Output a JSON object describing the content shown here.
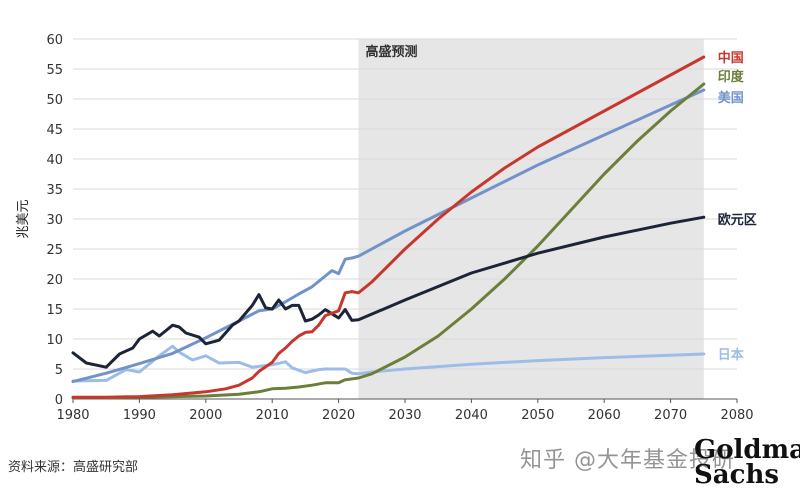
{
  "chart_data": {
    "type": "line",
    "title": "",
    "xlabel": "",
    "ylabel": "兆美元",
    "xlim": [
      1980,
      2080
    ],
    "ylim": [
      0,
      60
    ],
    "xticks": [
      "1980",
      "1990",
      "2000",
      "2010",
      "2020",
      "2030",
      "2040",
      "2050",
      "2060",
      "2070",
      "2080"
    ],
    "yticks": [
      "0",
      "5",
      "10",
      "15",
      "20",
      "25",
      "30",
      "35",
      "40",
      "45",
      "50",
      "55",
      "60"
    ],
    "forecast": {
      "label": "高盛预测",
      "start": 2023,
      "end": 2075
    },
    "series": [
      {
        "name": "中国",
        "color": "#c8372d",
        "points": [
          [
            1980,
            0.3
          ],
          [
            1985,
            0.3
          ],
          [
            1990,
            0.4
          ],
          [
            1995,
            0.7
          ],
          [
            2000,
            1.2
          ],
          [
            2003,
            1.7
          ],
          [
            2005,
            2.3
          ],
          [
            2007,
            3.5
          ],
          [
            2008,
            4.6
          ],
          [
            2010,
            6.1
          ],
          [
            2011,
            7.6
          ],
          [
            2012,
            8.5
          ],
          [
            2013,
            9.6
          ],
          [
            2014,
            10.5
          ],
          [
            2015,
            11.1
          ],
          [
            2016,
            11.2
          ],
          [
            2017,
            12.3
          ],
          [
            2018,
            13.9
          ],
          [
            2019,
            14.3
          ],
          [
            2020,
            14.7
          ],
          [
            2021,
            17.7
          ],
          [
            2022,
            17.9
          ],
          [
            2023,
            17.7
          ],
          [
            2025,
            19.5
          ],
          [
            2030,
            25
          ],
          [
            2035,
            30
          ],
          [
            2040,
            34.5
          ],
          [
            2045,
            38.5
          ],
          [
            2050,
            42
          ],
          [
            2055,
            45
          ],
          [
            2060,
            48
          ],
          [
            2065,
            51
          ],
          [
            2070,
            54
          ],
          [
            2075,
            57
          ]
        ]
      },
      {
        "name": "印度",
        "color": "#6b7f3a",
        "points": [
          [
            1980,
            0.2
          ],
          [
            1985,
            0.2
          ],
          [
            1990,
            0.3
          ],
          [
            1995,
            0.4
          ],
          [
            2000,
            0.5
          ],
          [
            2005,
            0.8
          ],
          [
            2008,
            1.2
          ],
          [
            2010,
            1.7
          ],
          [
            2012,
            1.8
          ],
          [
            2014,
            2.0
          ],
          [
            2016,
            2.3
          ],
          [
            2018,
            2.7
          ],
          [
            2020,
            2.7
          ],
          [
            2021,
            3.2
          ],
          [
            2023,
            3.5
          ],
          [
            2025,
            4.2
          ],
          [
            2030,
            7
          ],
          [
            2035,
            10.5
          ],
          [
            2040,
            15
          ],
          [
            2045,
            20
          ],
          [
            2050,
            25.5
          ],
          [
            2055,
            31.5
          ],
          [
            2060,
            37.5
          ],
          [
            2065,
            43
          ],
          [
            2070,
            48
          ],
          [
            2075,
            52.5
          ]
        ]
      },
      {
        "name": "美国",
        "color": "#7293c9",
        "points": [
          [
            1980,
            2.9
          ],
          [
            1985,
            4.3
          ],
          [
            1990,
            5.9
          ],
          [
            1995,
            7.6
          ],
          [
            2000,
            10.2
          ],
          [
            2005,
            13.0
          ],
          [
            2008,
            14.7
          ],
          [
            2010,
            15.0
          ],
          [
            2012,
            16.2
          ],
          [
            2014,
            17.5
          ],
          [
            2016,
            18.7
          ],
          [
            2018,
            20.5
          ],
          [
            2019,
            21.4
          ],
          [
            2020,
            20.9
          ],
          [
            2021,
            23.3
          ],
          [
            2022,
            23.5
          ],
          [
            2023,
            23.8
          ],
          [
            2030,
            28
          ],
          [
            2040,
            33.5
          ],
          [
            2050,
            39
          ],
          [
            2060,
            44
          ],
          [
            2070,
            49
          ],
          [
            2075,
            51.5
          ]
        ]
      },
      {
        "name": "欧元区",
        "color": "#1c2438",
        "points": [
          [
            1980,
            7.7
          ],
          [
            1982,
            6.0
          ],
          [
            1985,
            5.3
          ],
          [
            1987,
            7.5
          ],
          [
            1989,
            8.5
          ],
          [
            1990,
            10.0
          ],
          [
            1992,
            11.3
          ],
          [
            1993,
            10.5
          ],
          [
            1995,
            12.3
          ],
          [
            1996,
            12.0
          ],
          [
            1997,
            11.0
          ],
          [
            1999,
            10.3
          ],
          [
            2000,
            9.2
          ],
          [
            2002,
            9.8
          ],
          [
            2004,
            12.3
          ],
          [
            2005,
            13.0
          ],
          [
            2007,
            15.6
          ],
          [
            2008,
            17.4
          ],
          [
            2009,
            15.2
          ],
          [
            2010,
            15.0
          ],
          [
            2011,
            16.5
          ],
          [
            2012,
            15.0
          ],
          [
            2013,
            15.6
          ],
          [
            2014,
            15.6
          ],
          [
            2015,
            13.0
          ],
          [
            2016,
            13.3
          ],
          [
            2017,
            14.0
          ],
          [
            2018,
            14.9
          ],
          [
            2019,
            14.2
          ],
          [
            2020,
            13.5
          ],
          [
            2021,
            14.9
          ],
          [
            2022,
            13.1
          ],
          [
            2023,
            13.2
          ],
          [
            2030,
            16.5
          ],
          [
            2040,
            21
          ],
          [
            2050,
            24.3
          ],
          [
            2060,
            27
          ],
          [
            2070,
            29.3
          ],
          [
            2075,
            30.3
          ]
        ]
      },
      {
        "name": "日本",
        "color": "#9cbde8",
        "points": [
          [
            1980,
            3.0
          ],
          [
            1985,
            3.1
          ],
          [
            1988,
            4.9
          ],
          [
            1990,
            4.5
          ],
          [
            1993,
            7.2
          ],
          [
            1995,
            8.8
          ],
          [
            1996,
            7.8
          ],
          [
            1998,
            6.5
          ],
          [
            2000,
            7.2
          ],
          [
            2002,
            6.0
          ],
          [
            2005,
            6.1
          ],
          [
            2007,
            5.3
          ],
          [
            2010,
            5.7
          ],
          [
            2012,
            6.2
          ],
          [
            2013,
            5.2
          ],
          [
            2015,
            4.4
          ],
          [
            2017,
            4.9
          ],
          [
            2018,
            5.0
          ],
          [
            2020,
            5.0
          ],
          [
            2021,
            5.0
          ],
          [
            2022,
            4.3
          ],
          [
            2023,
            4.2
          ],
          [
            2025,
            4.5
          ],
          [
            2030,
            5.0
          ],
          [
            2040,
            5.8
          ],
          [
            2050,
            6.4
          ],
          [
            2060,
            6.9
          ],
          [
            2070,
            7.3
          ],
          [
            2075,
            7.5
          ]
        ]
      }
    ]
  },
  "footer": {
    "source": "资料来源：高盛研究部",
    "watermark": "知乎 @大年基金投研",
    "logo_line1": "Goldman",
    "logo_line2": "Sachs"
  }
}
